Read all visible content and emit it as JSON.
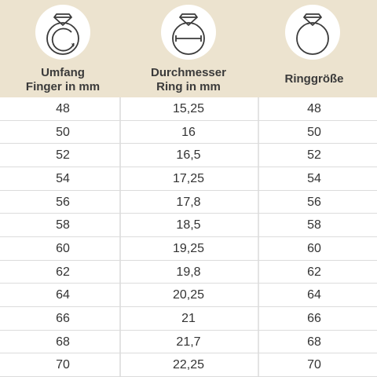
{
  "header": {
    "columns": [
      {
        "line1": "Umfang",
        "line2": "Finger in mm",
        "icon": "ring-circumference-icon"
      },
      {
        "line1": "Durchmesser",
        "line2": "Ring in mm",
        "icon": "ring-diameter-icon"
      },
      {
        "line1": "Ringgröße",
        "line2": "",
        "icon": "ring-size-icon"
      }
    ]
  },
  "colors": {
    "header_bg": "#ece3cf",
    "icon_stroke": "#3a3a3a",
    "text": "#333333"
  },
  "rows": [
    {
      "umfang": "48",
      "durchmesser": "15,25",
      "groesse": "48"
    },
    {
      "umfang": "50",
      "durchmesser": "16",
      "groesse": "50"
    },
    {
      "umfang": "52",
      "durchmesser": "16,5",
      "groesse": "52"
    },
    {
      "umfang": "54",
      "durchmesser": "17,25",
      "groesse": "54"
    },
    {
      "umfang": "56",
      "durchmesser": "17,8",
      "groesse": "56"
    },
    {
      "umfang": "58",
      "durchmesser": "18,5",
      "groesse": "58"
    },
    {
      "umfang": "60",
      "durchmesser": "19,25",
      "groesse": "60"
    },
    {
      "umfang": "62",
      "durchmesser": "19,8",
      "groesse": "62"
    },
    {
      "umfang": "64",
      "durchmesser": "20,25",
      "groesse": "64"
    },
    {
      "umfang": "66",
      "durchmesser": "21",
      "groesse": "66"
    },
    {
      "umfang": "68",
      "durchmesser": "21,7",
      "groesse": "68"
    },
    {
      "umfang": "70",
      "durchmesser": "22,25",
      "groesse": "70"
    }
  ]
}
